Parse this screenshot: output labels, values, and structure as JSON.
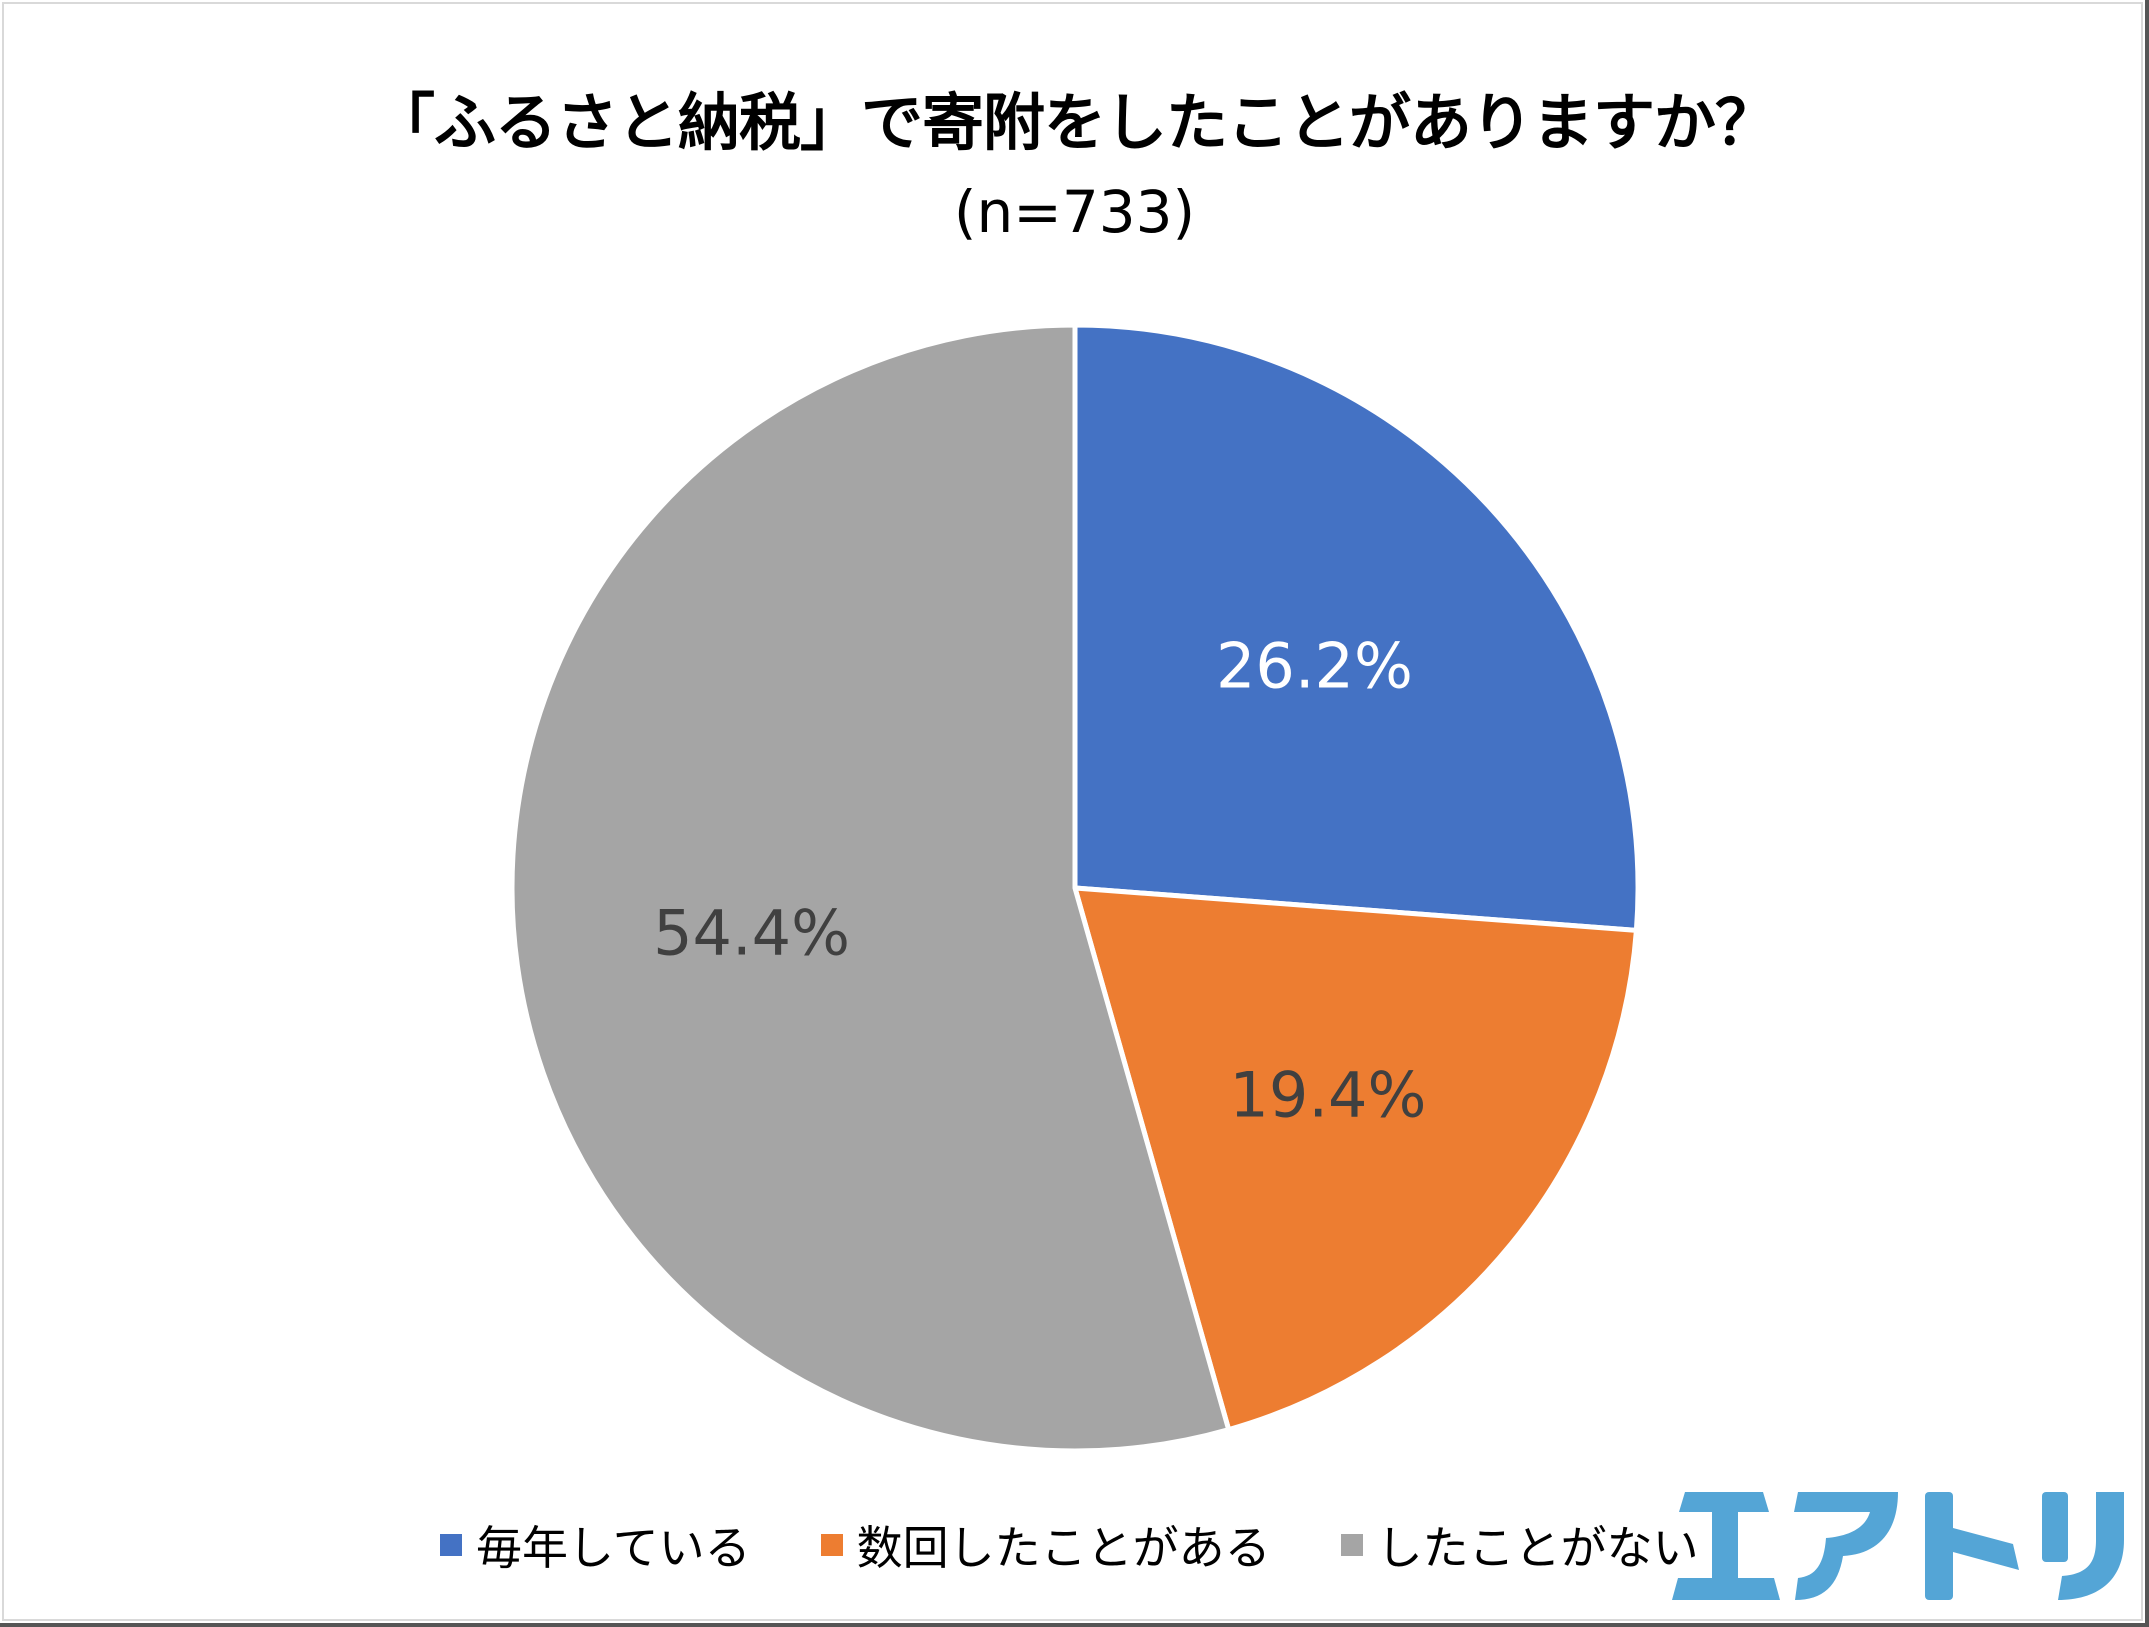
{
  "title": "「ふるさと納税」で寄附をしたことがありますか？",
  "subtitle": "(n=733)",
  "logo": {
    "text": "エアトリ",
    "color": "#54A5D6"
  },
  "chart_data": {
    "type": "pie",
    "title": "「ふるさと納税」で寄附をしたことがありますか？",
    "subtitle": "(n=733)",
    "categories": [
      "毎年している",
      "数回したことがある",
      "したことがない"
    ],
    "values": [
      26.2,
      19.4,
      54.4
    ],
    "labels": [
      "26.2%",
      "19.4%",
      "54.4%"
    ],
    "colors": [
      "#4472C4",
      "#ED7D31",
      "#A5A5A5"
    ],
    "label_colors": [
      "#FFFFFF",
      "#404040",
      "#404040"
    ],
    "start_angle_deg": 0,
    "direction": "clockwise",
    "legend_position": "bottom"
  },
  "legend": [
    {
      "label": "毎年している",
      "color": "#4472C4"
    },
    {
      "label": "数回したことがある",
      "color": "#ED7D31"
    },
    {
      "label": "したことがない",
      "color": "#A5A5A5"
    }
  ]
}
